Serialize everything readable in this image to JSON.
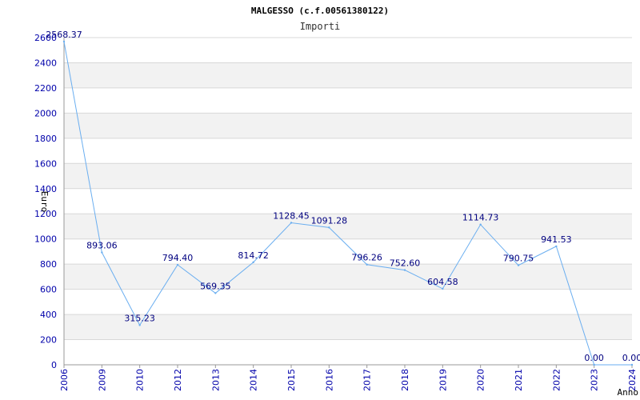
{
  "chart_data": {
    "type": "line",
    "title": "MALGESSO (c.f.00561380122)",
    "subtitle": "Importi",
    "xlabel": "Anno",
    "ylabel": "Euro",
    "ylim": [
      0,
      2600
    ],
    "y_ticks": [
      0,
      200,
      400,
      600,
      800,
      1000,
      1200,
      1400,
      1600,
      1800,
      2000,
      2200,
      2400,
      2600
    ],
    "grid": "horizontal alternating bands",
    "categories": [
      "2006",
      "2009",
      "2010",
      "2012",
      "2013",
      "2014",
      "2015",
      "2016",
      "2017",
      "2018",
      "2019",
      "2020",
      "2021",
      "2022",
      "2023",
      "2024"
    ],
    "series": [
      {
        "values": [
          2568.37,
          893.06,
          315.23,
          794.4,
          569.35,
          814.72,
          1128.45,
          1091.28,
          796.26,
          752.6,
          604.58,
          1114.73,
          790.75,
          941.53,
          0.0,
          0.0
        ],
        "labels": [
          "2568.37",
          "893.06",
          "315.23",
          "794.40",
          "569.35",
          "814.72",
          "1128.45",
          "1091.28",
          "796.26",
          "752.60",
          "604.58",
          "1114.73",
          "790.75",
          "941.53",
          "0.00",
          "0.00"
        ],
        "color": "#6aaef0"
      }
    ],
    "colors": {
      "axis_text": "#0000aa",
      "label_text": "#000080",
      "band": "#f2f2f2",
      "grid": "#d8d8d8"
    }
  }
}
